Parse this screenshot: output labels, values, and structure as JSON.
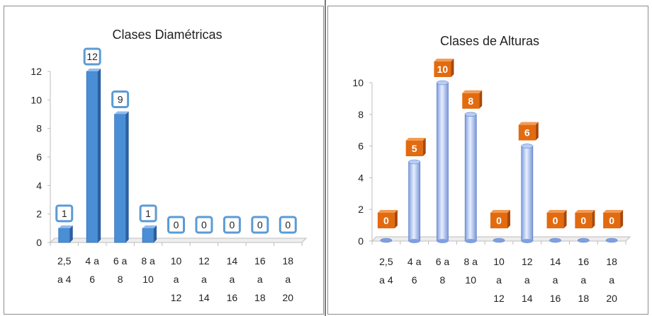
{
  "chart_data": [
    {
      "type": "bar",
      "style": "3d-column",
      "title": "Clases Diamétricas",
      "categories": [
        [
          "2,5",
          "a 4"
        ],
        [
          "4 a",
          "6"
        ],
        [
          "6 a",
          "8"
        ],
        [
          "8 a",
          "10"
        ],
        [
          "10",
          "a",
          "12"
        ],
        [
          "12",
          "a",
          "14"
        ],
        [
          "14",
          "a",
          "16"
        ],
        [
          "16",
          "a",
          "18"
        ],
        [
          "18",
          "a",
          "20"
        ]
      ],
      "values": [
        1,
        12,
        9,
        1,
        0,
        0,
        0,
        0,
        0
      ],
      "ylim": [
        0,
        12
      ],
      "yticks": [
        0,
        2,
        4,
        6,
        8,
        10,
        12
      ],
      "bar_color": "#4a8fd6",
      "data_labels": "boxed-outline",
      "label_border": "#5b9bd5"
    },
    {
      "type": "bar",
      "style": "3d-cylinder",
      "title": "Clases de Alturas",
      "categories": [
        [
          "2,5",
          "a 4"
        ],
        [
          "4 a",
          "6"
        ],
        [
          "6 a",
          "8"
        ],
        [
          "8 a",
          "10"
        ],
        [
          "10",
          "a",
          "12"
        ],
        [
          "12",
          "a",
          "14"
        ],
        [
          "14",
          "a",
          "16"
        ],
        [
          "16",
          "a",
          "18"
        ],
        [
          "18",
          "a",
          "20"
        ]
      ],
      "values": [
        0,
        5,
        10,
        8,
        0,
        6,
        0,
        0,
        0
      ],
      "ylim": [
        0,
        10
      ],
      "yticks": [
        0,
        2,
        4,
        6,
        8,
        10
      ],
      "bar_color": "#9db8f0",
      "data_labels": "orange-tag",
      "label_fill": "#e26b10"
    }
  ]
}
